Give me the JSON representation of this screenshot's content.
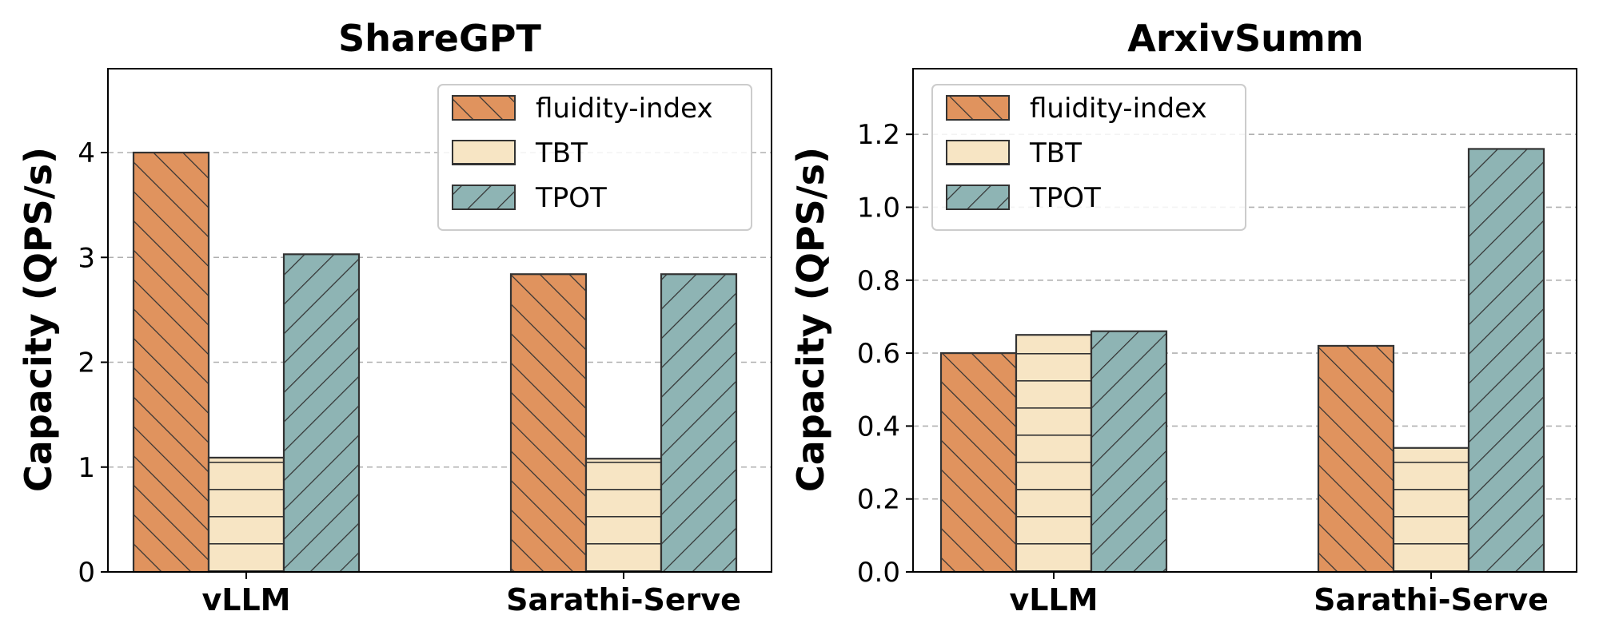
{
  "chart_data": [
    {
      "type": "bar",
      "title": "ShareGPT",
      "ylabel": "Capacity (QPS/s)",
      "categories": [
        "vLLM",
        "Sarathi-Serve"
      ],
      "ylim": [
        0,
        4.8
      ],
      "yticks": [
        "0",
        "1",
        "2",
        "3",
        "4"
      ],
      "ytick_values": [
        0,
        1,
        2,
        3,
        4
      ],
      "grid": "horizontal dashed",
      "legend": "top-right",
      "series": [
        {
          "name": "fluidity-index",
          "values": [
            4.0,
            2.84
          ],
          "color": "#E0935E",
          "hatch": "back-diagonal"
        },
        {
          "name": "TBT",
          "values": [
            1.09,
            1.08
          ],
          "color": "#F7E5C4",
          "hatch": "horizontal"
        },
        {
          "name": "TPOT",
          "values": [
            3.03,
            2.84
          ],
          "color": "#8EB4B4",
          "hatch": "forward-diagonal"
        }
      ]
    },
    {
      "type": "bar",
      "title": "ArxivSumm",
      "ylabel": "Capacity (QPS/s)",
      "categories": [
        "vLLM",
        "Sarathi-Serve"
      ],
      "ylim": [
        0,
        1.38
      ],
      "yticks": [
        "0.0",
        "0.2",
        "0.4",
        "0.6",
        "0.8",
        "1.0",
        "1.2"
      ],
      "ytick_values": [
        0,
        0.2,
        0.4,
        0.6,
        0.8,
        1.0,
        1.2
      ],
      "grid": "horizontal dashed",
      "legend": "top-left",
      "series": [
        {
          "name": "fluidity-index",
          "values": [
            0.6,
            0.62
          ],
          "color": "#E0935E",
          "hatch": "back-diagonal"
        },
        {
          "name": "TBT",
          "values": [
            0.65,
            0.34
          ],
          "color": "#F7E5C4",
          "hatch": "horizontal"
        },
        {
          "name": "TPOT",
          "values": [
            0.66,
            1.16
          ],
          "color": "#8EB4B4",
          "hatch": "forward-diagonal"
        }
      ]
    }
  ]
}
